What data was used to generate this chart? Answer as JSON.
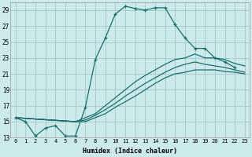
{
  "xlabel": "Humidex (Indice chaleur)",
  "background_color": "#cceaea",
  "grid_color": "#aacccc",
  "line_color": "#1a6e6e",
  "xlim": [
    -0.5,
    23.5
  ],
  "ylim": [
    13,
    30
  ],
  "yticks": [
    13,
    15,
    17,
    19,
    21,
    23,
    25,
    27,
    29
  ],
  "xticks": [
    0,
    1,
    2,
    3,
    4,
    5,
    6,
    7,
    8,
    9,
    10,
    11,
    12,
    13,
    14,
    15,
    16,
    17,
    18,
    19,
    20,
    21,
    22,
    23
  ],
  "lines": [
    {
      "x": [
        0,
        1,
        2,
        3,
        4,
        5,
        6,
        7,
        8,
        9,
        10,
        11,
        12,
        13,
        14,
        15,
        16,
        17,
        18,
        19,
        20,
        21,
        22,
        23
      ],
      "y": [
        15.5,
        15.0,
        13.2,
        14.2,
        14.5,
        13.2,
        13.2,
        16.8,
        22.8,
        25.5,
        28.5,
        29.5,
        29.2,
        29.0,
        29.3,
        29.3,
        27.2,
        25.5,
        24.2,
        24.2,
        23.0,
        22.5,
        21.8,
        null
      ],
      "marker": "+"
    },
    {
      "x": [
        0,
        6,
        7,
        8,
        9,
        10,
        11,
        12,
        13,
        14,
        15,
        16,
        17,
        18,
        19,
        20,
        21,
        22,
        23
      ],
      "y": [
        15.5,
        15.0,
        15.5,
        16.0,
        17.0,
        18.0,
        19.0,
        20.0,
        20.8,
        21.5,
        22.2,
        22.8,
        23.0,
        23.5,
        23.0,
        23.0,
        22.8,
        22.3,
        22.0
      ],
      "marker": null
    },
    {
      "x": [
        0,
        6,
        7,
        8,
        9,
        10,
        11,
        12,
        13,
        14,
        15,
        16,
        17,
        18,
        19,
        20,
        21,
        22,
        23
      ],
      "y": [
        15.5,
        15.0,
        15.2,
        15.8,
        16.5,
        17.3,
        18.2,
        19.0,
        19.8,
        20.5,
        21.2,
        21.8,
        22.2,
        22.5,
        22.2,
        22.0,
        21.8,
        21.5,
        21.2
      ],
      "marker": null
    },
    {
      "x": [
        0,
        6,
        7,
        8,
        9,
        10,
        11,
        12,
        13,
        14,
        15,
        16,
        17,
        18,
        19,
        20,
        21,
        22,
        23
      ],
      "y": [
        15.5,
        15.0,
        15.0,
        15.5,
        16.0,
        16.8,
        17.5,
        18.2,
        19.0,
        19.8,
        20.5,
        21.0,
        21.2,
        21.5,
        21.5,
        21.5,
        21.3,
        21.2,
        21.0
      ],
      "marker": null
    }
  ]
}
